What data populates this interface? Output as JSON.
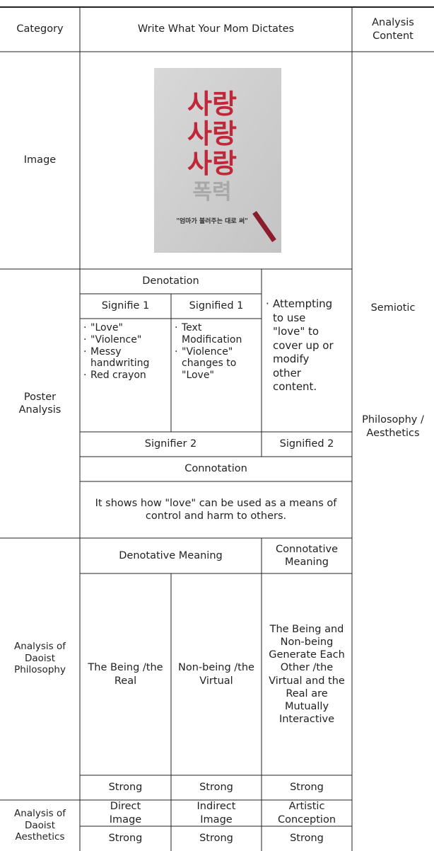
{
  "header": {
    "category": "Category",
    "title": "Write What Your Mom Dictates",
    "analysis": "Analysis Content"
  },
  "image_row": {
    "label": "Image",
    "poster": {
      "words": [
        "사랑",
        "사랑",
        "사랑",
        "폭력"
      ],
      "subtitle": "\"엄마가 불러주는 대로 써\""
    }
  },
  "analysis_content": [
    "Semiotic",
    "Philosophy / Aesthetics"
  ],
  "poster_analysis": {
    "label": "Poster Analysis",
    "denotation": "Denotation",
    "signifier1": "Signifie 1",
    "signified1": "Signified 1",
    "signifier1_items": [
      "\"Love\"",
      "\"Violence\"",
      "Messy handwriting",
      "Red crayon"
    ],
    "signified1_items": [
      "Text Modification",
      "\"Violence\" changes to \"Love\""
    ],
    "signified2_items": [
      "Attempting to use \"love\" to cover up or modify other content."
    ],
    "signifier2": "Signifier 2",
    "signified2": "Signified 2",
    "connotation": "Connotation",
    "connotation_text": "It shows how \"love\" can be used as a means of control and harm to others."
  },
  "philosophy": {
    "label": "Analysis of Daoist Philosophy",
    "denotative": "Denotative Meaning",
    "connotative": "Connotative Meaning",
    "cells": [
      "The Being /the Real",
      "Non-being /the Virtual",
      "The Being and Non-being Generate Each Other /the Virtual and the Real are Mutually Interactive"
    ],
    "strength": [
      "Strong",
      "Strong",
      "Strong"
    ]
  },
  "aesthetics": {
    "label": "Analysis of Daoist Aesthetics",
    "cells": [
      "Direct Image",
      "Indirect Image",
      "Artistic Conception"
    ],
    "strength": [
      "Strong",
      "Strong",
      "Strong"
    ]
  }
}
